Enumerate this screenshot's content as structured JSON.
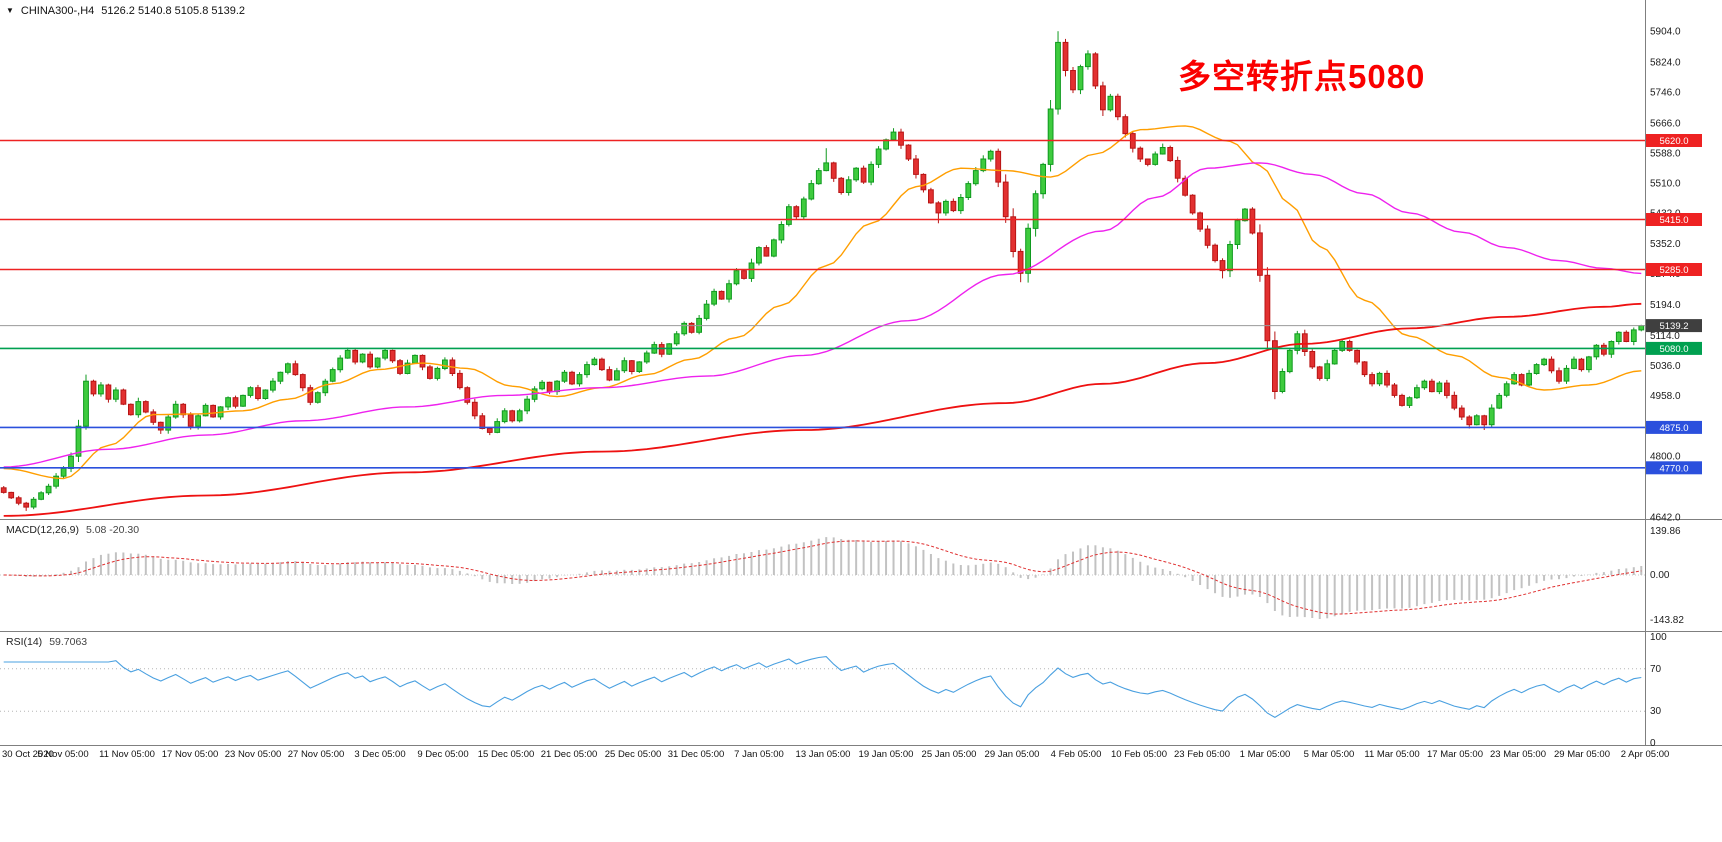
{
  "header": {
    "dropdown_icon": "▼",
    "symbol": "CHINA300-,H4",
    "ohlc": "5126.2 5140.8 5105.8 5139.2"
  },
  "annotation": {
    "text": "多空转折点5080",
    "color": "#fa0000"
  },
  "macd_panel": {
    "label": "MACD(12,26,9)",
    "value": "5.08 -20.30",
    "ticks": [
      {
        "label": "139.86",
        "value": 139.86
      },
      {
        "label": "0.00",
        "value": 0
      },
      {
        "label": "-143.82",
        "value": -143.82
      }
    ]
  },
  "rsi_panel": {
    "label": "RSI(14)",
    "value": "59.7063",
    "levels": [
      70,
      30
    ],
    "ticks": [
      {
        "label": "100",
        "value": 100
      },
      {
        "label": "70",
        "value": 70
      },
      {
        "label": "30",
        "value": 30
      },
      {
        "label": "0",
        "value": 0
      }
    ]
  },
  "chart_data": {
    "type": "candlestick",
    "symbol": "CHINA300-",
    "timeframe": "H4",
    "ohlc_current": {
      "open": 5126.2,
      "high": 5140.8,
      "low": 5105.8,
      "close": 5139.2
    },
    "y_axis": {
      "min": 4642,
      "max": 5904,
      "ticks": [
        "5904.0",
        "5824.0",
        "5746.0",
        "5666.0",
        "5588.0",
        "5510.0",
        "5432.0",
        "5352.0",
        "5274.0",
        "5194.0",
        "5114.0",
        "5036.0",
        "4958.0",
        "4800.0",
        "4642.0"
      ]
    },
    "x_labels": [
      "30 Oct 2020",
      "5 Nov 05:00",
      "11 Nov 05:00",
      "17 Nov 05:00",
      "23 Nov 05:00",
      "27 Nov 05:00",
      "3 Dec 05:00",
      "9 Dec 05:00",
      "15 Dec 05:00",
      "21 Dec 05:00",
      "25 Dec 05:00",
      "31 Dec 05:00",
      "7 Jan 05:00",
      "13 Jan 05:00",
      "19 Jan 05:00",
      "25 Jan 05:00",
      "29 Jan 05:00",
      "4 Feb 05:00",
      "10 Feb 05:00",
      "23 Feb 05:00",
      "1 Mar 05:00",
      "5 Mar 05:00",
      "11 Mar 05:00",
      "17 Mar 05:00",
      "23 Mar 05:00",
      "29 Mar 05:00",
      "2 Apr 05:00"
    ],
    "hlines": [
      {
        "price": 5620,
        "label": "5620.0",
        "tag_color": "#ee2222",
        "line_color": "#ee2222"
      },
      {
        "price": 5415,
        "label": "5415.0",
        "tag_color": "#ee2222",
        "line_color": "#ee2222"
      },
      {
        "price": 5285,
        "label": "5285.0",
        "tag_color": "#ee2222",
        "line_color": "#ee2222"
      },
      {
        "price": 5139.2,
        "label": "5139.2",
        "tag_color": "#3f3f3f",
        "line_color": "#9a9a9a"
      },
      {
        "price": 5080,
        "label": "5080.0",
        "tag_color": "#00a050",
        "line_color": "#00a050"
      },
      {
        "price": 4875,
        "label": "4875.0",
        "tag_color": "#2b50dd",
        "line_color": "#2b50dd"
      },
      {
        "price": 4770,
        "label": "4770.0",
        "tag_color": "#2b50dd",
        "line_color": "#2b50dd"
      }
    ],
    "candles": {
      "first_open": 4718,
      "closes": [
        4706,
        4692,
        4678,
        4668,
        4688,
        4705,
        4722,
        4748,
        4768,
        4800,
        4878,
        4995,
        4962,
        4985,
        4948,
        4972,
        4935,
        4908,
        4942,
        4915,
        4888,
        4868,
        4902,
        4935,
        4908,
        4878,
        4905,
        4932,
        4902,
        4928,
        4952,
        4930,
        4958,
        4978,
        4950,
        4972,
        4995,
        5018,
        5040,
        5012,
        4978,
        4940,
        4965,
        4995,
        5025,
        5055,
        5075,
        5045,
        5065,
        5032,
        5055,
        5075,
        5048,
        5015,
        5042,
        5062,
        5032,
        5002,
        5028,
        5050,
        5015,
        4978,
        4940,
        4905,
        4872,
        4862,
        4890,
        4918,
        4892,
        4918,
        4948,
        4975,
        4992,
        4968,
        4995,
        5018,
        4988,
        5012,
        5038,
        5052,
        5025,
        4998,
        5022,
        5048,
        5020,
        5045,
        5068,
        5090,
        5065,
        5092,
        5118,
        5145,
        5122,
        5158,
        5195,
        5228,
        5208,
        5248,
        5282,
        5262,
        5302,
        5342,
        5320,
        5362,
        5402,
        5448,
        5422,
        5468,
        5508,
        5542,
        5562,
        5522,
        5485,
        5518,
        5548,
        5512,
        5558,
        5598,
        5622,
        5642,
        5608,
        5572,
        5532,
        5492,
        5458,
        5432,
        5462,
        5438,
        5472,
        5508,
        5542,
        5572,
        5592,
        5512,
        5422,
        5332,
        5275,
        5392,
        5482,
        5558,
        5702,
        5875,
        5802,
        5752,
        5812,
        5845,
        5762,
        5700,
        5735,
        5682,
        5638,
        5600,
        5572,
        5558,
        5585,
        5602,
        5568,
        5522,
        5478,
        5432,
        5390,
        5348,
        5308,
        5282,
        5350,
        5412,
        5442,
        5380,
        5270,
        5100,
        4968,
        5020,
        5075,
        5118,
        5072,
        5032,
        5002,
        5040,
        5075,
        5098,
        5075,
        5045,
        5012,
        4988,
        5015,
        4985,
        4958,
        4932,
        4952,
        4978,
        4995,
        4968,
        4990,
        4958,
        4925,
        4902,
        4882,
        4905,
        4882,
        4925,
        4958,
        4988,
        5012,
        4985,
        5015,
        5038,
        5052,
        5022,
        4995,
        5028,
        5052,
        5025,
        5058,
        5088,
        5065,
        5098,
        5122,
        5098,
        5128,
        5139.2
      ],
      "highs_override": {
        "11": 5012,
        "46": 5082,
        "110": 5600,
        "119": 5652,
        "141": 5904,
        "155": 5612
      },
      "lows_override": {
        "3": 4658,
        "21": 4858,
        "65": 4855,
        "125": 5405,
        "136": 5252,
        "163": 5262,
        "170": 4948,
        "196": 4872,
        "198": 4868
      }
    },
    "moving_averages": [
      {
        "name": "ma-fast",
        "color": "#ff9e00",
        "anchors": [
          [
            0,
            4768
          ],
          [
            8,
            4742
          ],
          [
            14,
            4828
          ],
          [
            20,
            4908
          ],
          [
            26,
            4910
          ],
          [
            32,
            4918
          ],
          [
            38,
            4948
          ],
          [
            44,
            4988
          ],
          [
            50,
            5025
          ],
          [
            56,
            5042
          ],
          [
            62,
            5028
          ],
          [
            68,
            4982
          ],
          [
            74,
            4955
          ],
          [
            80,
            4978
          ],
          [
            86,
            5012
          ],
          [
            92,
            5052
          ],
          [
            98,
            5108
          ],
          [
            104,
            5192
          ],
          [
            110,
            5295
          ],
          [
            116,
            5405
          ],
          [
            122,
            5500
          ],
          [
            128,
            5548
          ],
          [
            134,
            5542
          ],
          [
            140,
            5525
          ],
          [
            146,
            5585
          ],
          [
            152,
            5648
          ],
          [
            158,
            5658
          ],
          [
            164,
            5618
          ],
          [
            168,
            5555
          ],
          [
            172,
            5455
          ],
          [
            176,
            5345
          ],
          [
            182,
            5205
          ],
          [
            188,
            5112
          ],
          [
            194,
            5062
          ],
          [
            200,
            5005
          ],
          [
            206,
            4972
          ],
          [
            212,
            4985
          ],
          [
            219,
            5022
          ]
        ]
      },
      {
        "name": "ma-mid",
        "color": "#ee22ee",
        "anchors": [
          [
            0,
            4772
          ],
          [
            14,
            4818
          ],
          [
            27,
            4855
          ],
          [
            40,
            4892
          ],
          [
            54,
            4928
          ],
          [
            67,
            4958
          ],
          [
            80,
            4978
          ],
          [
            94,
            5008
          ],
          [
            107,
            5062
          ],
          [
            121,
            5152
          ],
          [
            134,
            5272
          ],
          [
            147,
            5385
          ],
          [
            154,
            5472
          ],
          [
            161,
            5548
          ],
          [
            168,
            5562
          ],
          [
            175,
            5532
          ],
          [
            182,
            5482
          ],
          [
            188,
            5432
          ],
          [
            195,
            5382
          ],
          [
            201,
            5342
          ],
          [
            208,
            5308
          ],
          [
            214,
            5288
          ],
          [
            219,
            5275
          ]
        ]
      },
      {
        "name": "ma-slow",
        "color": "#ee1111",
        "anchors": [
          [
            0,
            4645
          ],
          [
            27,
            4698
          ],
          [
            54,
            4758
          ],
          [
            80,
            4812
          ],
          [
            107,
            4868
          ],
          [
            134,
            4938
          ],
          [
            147,
            4988
          ],
          [
            161,
            5042
          ],
          [
            174,
            5092
          ],
          [
            188,
            5132
          ],
          [
            201,
            5162
          ],
          [
            214,
            5188
          ],
          [
            219,
            5196
          ]
        ]
      }
    ],
    "colors": {
      "up": "#3ecb3e",
      "up_stroke": "#0f9a1f",
      "down": "#e23030",
      "down_stroke": "#b81414",
      "macd_hist": "#c2c2c2",
      "macd_signal": "#e03131",
      "rsi": "#4aa0e0"
    }
  }
}
